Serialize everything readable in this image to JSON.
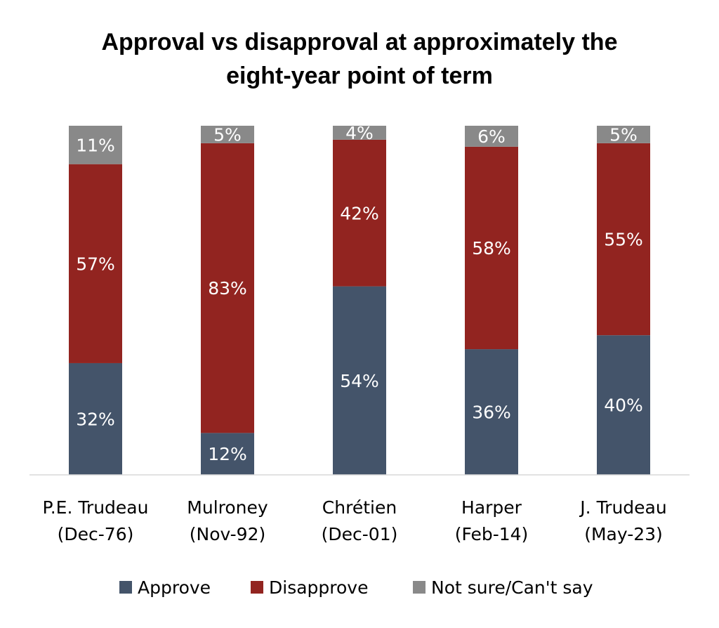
{
  "chart_data": {
    "type": "bar",
    "stacked": true,
    "title_lines": [
      "Approval vs disapproval at approximately the",
      "eight-year point of term"
    ],
    "categories": [
      [
        "P.E. Trudeau",
        "(Dec-76)"
      ],
      [
        "Mulroney",
        "(Nov-92)"
      ],
      [
        "Chrétien",
        "(Dec-01)"
      ],
      [
        "Harper",
        "(Feb-14)"
      ],
      [
        "J. Trudeau",
        "(May-23)"
      ]
    ],
    "series": [
      {
        "name": "Approve",
        "color": "#44546a",
        "values": [
          32,
          12,
          54,
          36,
          40
        ],
        "labels": [
          "32%",
          "12%",
          "54%",
          "36%",
          "40%"
        ]
      },
      {
        "name": "Disapprove",
        "color": "#922420",
        "values": [
          57,
          83,
          42,
          58,
          55
        ],
        "labels": [
          "57%",
          "83%",
          "42%",
          "58%",
          "55%"
        ]
      },
      {
        "name": "Not sure/Can't say",
        "color": "#898989",
        "values": [
          11,
          5,
          4,
          6,
          5
        ],
        "labels": [
          "11%",
          "5%",
          "4%",
          "6%",
          "5%"
        ]
      }
    ],
    "ylim": [
      0,
      100
    ],
    "legend_position": "bottom",
    "grid": false
  }
}
